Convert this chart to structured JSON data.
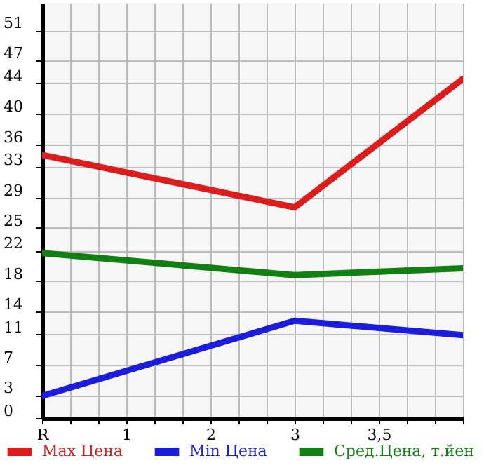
{
  "chart_data": {
    "type": "line",
    "categories": [
      "R",
      "1",
      "2",
      "3",
      "3,5",
      null
    ],
    "series": [
      {
        "name": "Max Цена",
        "color": "#dd1c1c",
        "values": [
          34.6,
          null,
          null,
          27.7,
          null,
          44.6
        ]
      },
      {
        "name": "Min Цена",
        "color": "#1c1cdd",
        "values": [
          2.9,
          null,
          null,
          12.8,
          null,
          10.9
        ]
      },
      {
        "name": "Сред.Цена, т.йен",
        "color": "#117f11",
        "values": [
          21.7,
          null,
          null,
          18.8,
          null,
          19.7
        ]
      }
    ],
    "ylim": [
      0,
      54.6
    ],
    "yticks": [
      0,
      3,
      7,
      11,
      14,
      18,
      22,
      25,
      29,
      33,
      36,
      40,
      44,
      47,
      51
    ],
    "grid": true,
    "legend": "bottom",
    "marker": "none",
    "line_style": "solid"
  }
}
